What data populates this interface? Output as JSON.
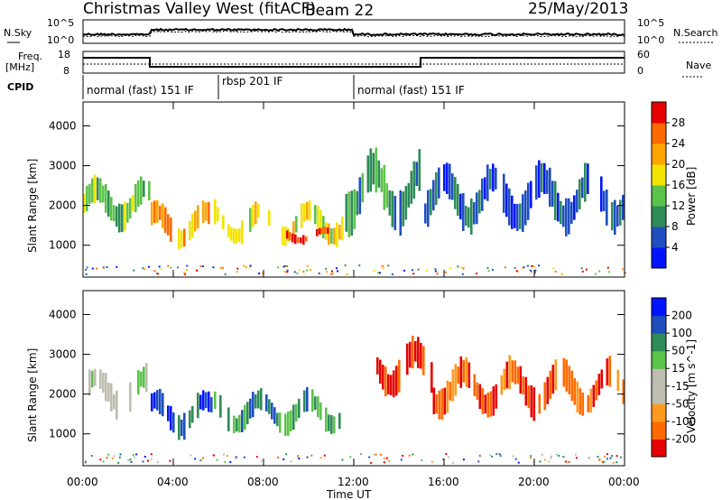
{
  "title": "Christmas Valley West (fitACF)",
  "beam": "Beam 22",
  "date": "25/May/2013",
  "top_panels": {
    "nsky_label": "N.Sky",
    "nsky_ticks": [
      "10^5",
      "10^0"
    ],
    "nsearch_label": "N.Search",
    "nsearch_ticks": [
      "10^5",
      "10^0"
    ],
    "freq_label_1": "Freq.",
    "freq_label_2": "[MHz]",
    "freq_ticks": [
      "18",
      "8"
    ],
    "nave_label": "Nave",
    "nave_ticks": [
      "60",
      "0"
    ],
    "cpid_label": "CPID",
    "cpid_segments": [
      {
        "label": "normal (fast) 151 IF",
        "start_h": 0,
        "end_h": 6
      },
      {
        "label": "rbsp 201 IF",
        "start_h": 6,
        "end_h": 12.2
      },
      {
        "label": "normal (fast) 151 IF",
        "start_h": 12.2,
        "end_h": 24
      }
    ]
  },
  "x_axis": {
    "label": "Time UT",
    "ticks": [
      "00:00",
      "04:00",
      "08:00",
      "12:00",
      "16:00",
      "20:00",
      "00:00"
    ]
  },
  "colors": {
    "power": [
      "#0015ff",
      "#1f4fbf",
      "#2e8b57",
      "#5cc24a",
      "#f2e300",
      "#ffa500",
      "#ff6a00",
      "#e60000"
    ],
    "velocity": [
      "#e60000",
      "#ff6a00",
      "#ff9a20",
      "#bdbdb0",
      "#bdbdb0",
      "#5cc24a",
      "#2e8b57",
      "#1f4fbf",
      "#0015ff"
    ]
  },
  "chart_data": [
    {
      "type": "heatmap",
      "name": "power-panel",
      "xlabel": "",
      "ylabel": "Slant Range [km]",
      "xlim": [
        0,
        24
      ],
      "ylim": [
        200,
        4600
      ],
      "yticks": [
        "1000",
        "2000",
        "3000",
        "4000"
      ],
      "colorbar": {
        "label": "Power [dB]",
        "ticks": [
          "4",
          "8",
          "12",
          "16",
          "20",
          "24",
          "28"
        ]
      },
      "bands": [
        {
          "h0": 0.0,
          "h1": 3.0,
          "r0": 1300,
          "r1": 2800,
          "level": 3
        },
        {
          "h0": 3.0,
          "h1": 5.8,
          "r0": 800,
          "r1": 2200,
          "level": 5
        },
        {
          "h0": 5.8,
          "h1": 11.5,
          "r0": 900,
          "r1": 2200,
          "level": 4
        },
        {
          "h0": 9.0,
          "h1": 11.0,
          "r0": 1000,
          "r1": 1500,
          "level": 7
        },
        {
          "h0": 11.5,
          "h1": 15.0,
          "r0": 1200,
          "r1": 3500,
          "level": 2
        },
        {
          "h0": 15.0,
          "h1": 24.0,
          "r0": 1200,
          "r1": 3200,
          "level": 1
        }
      ]
    },
    {
      "type": "heatmap",
      "name": "velocity-panel",
      "xlabel": "Time UT",
      "ylabel": "Slant Range [km]",
      "xlim": [
        0,
        24
      ],
      "ylim": [
        200,
        4600
      ],
      "yticks": [
        "1000",
        "2000",
        "3000",
        "4000"
      ],
      "colorbar": {
        "label": "Velocity [m s^-1]",
        "ticks": [
          "200",
          "100",
          "50",
          "15",
          "-15",
          "-50",
          "-100",
          "-200"
        ]
      },
      "bands": [
        {
          "h0": 0.0,
          "h1": 3.0,
          "r0": 1300,
          "r1": 2800,
          "level": 4
        },
        {
          "h0": 3.0,
          "h1": 5.8,
          "r0": 800,
          "r1": 2200,
          "level": 7
        },
        {
          "h0": 5.8,
          "h1": 11.5,
          "r0": 900,
          "r1": 2200,
          "level": 6
        },
        {
          "h0": 13.0,
          "h1": 15.5,
          "r0": 1800,
          "r1": 3500,
          "level": 0
        },
        {
          "h0": 15.5,
          "h1": 24.0,
          "r0": 1300,
          "r1": 3000,
          "level": 1
        }
      ]
    }
  ]
}
